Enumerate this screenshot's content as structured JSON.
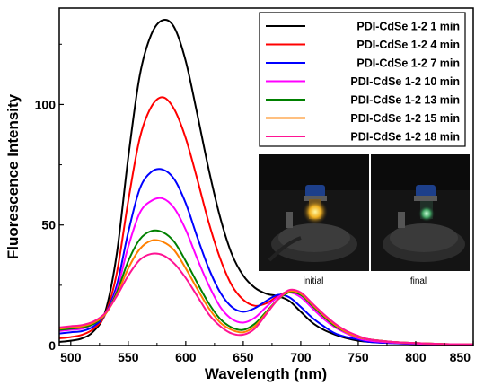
{
  "chart_data": {
    "type": "line",
    "title": "",
    "xlabel": "Wavelength (nm)",
    "ylabel": "Fluorescence Intensity",
    "xlim": [
      490,
      850
    ],
    "ylim": [
      0,
      140
    ],
    "x_ticks": [
      500,
      550,
      600,
      650,
      700,
      750,
      800,
      850
    ],
    "y_ticks": [
      0,
      50,
      100
    ],
    "legend_position": "top-right",
    "grid": false,
    "x": [
      490,
      500,
      510,
      520,
      530,
      540,
      550,
      560,
      570,
      580,
      590,
      600,
      610,
      620,
      630,
      640,
      650,
      660,
      670,
      680,
      690,
      700,
      710,
      720,
      730,
      740,
      750,
      760,
      780,
      800,
      825,
      850
    ],
    "series": [
      {
        "name": "PDI-CdSe 1-2 1 min",
        "color": "#000000",
        "values": [
          1.5,
          2,
          3,
          6,
          14,
          38,
          78,
          112,
          129,
          135,
          132,
          118,
          96,
          73,
          53,
          38,
          29,
          24,
          21.5,
          20.5,
          18.5,
          14,
          9.5,
          6.5,
          4.5,
          3,
          2,
          1.5,
          1,
          0.6,
          0.4,
          0.3
        ]
      },
      {
        "name": "PDI-CdSe 1-2 4 min",
        "color": "#ff0000",
        "values": [
          3,
          3.5,
          4.5,
          7,
          13,
          30,
          60,
          86,
          99,
          103,
          98,
          86,
          69,
          51,
          36,
          25,
          19,
          16.5,
          17.5,
          20.5,
          22.5,
          21,
          17,
          12,
          8,
          5.5,
          3.5,
          2.5,
          1.5,
          1,
          0.6,
          0.5
        ]
      },
      {
        "name": "PDI-CdSe 1-2 7 min",
        "color": "#0000ff",
        "values": [
          5,
          5.5,
          6,
          8,
          13,
          25,
          47,
          65,
          72,
          73,
          69,
          59,
          45,
          32,
          22,
          16,
          14,
          15.5,
          18.5,
          21,
          20,
          16,
          11.5,
          8,
          5,
          3.5,
          2.5,
          1.5,
          1,
          0.7,
          0.5,
          0.4
        ]
      },
      {
        "name": "PDI-CdSe 1-2 10 min",
        "color": "#ff00ff",
        "values": [
          6,
          6.5,
          7,
          9,
          13,
          23,
          41,
          55,
          60,
          61,
          57,
          48,
          36,
          25,
          16,
          11,
          9.5,
          11.5,
          16,
          20,
          22,
          20,
          15.5,
          11,
          7.5,
          5,
          3,
          2,
          1.2,
          0.8,
          0.5,
          0.4
        ]
      },
      {
        "name": "PDI-CdSe 1-2 13 min",
        "color": "#008000",
        "values": [
          6.5,
          7,
          7.5,
          9,
          13,
          22,
          35,
          44,
          47.5,
          47,
          43,
          35,
          26,
          17.5,
          11,
          7.5,
          6.5,
          9,
          14,
          19,
          22,
          21,
          16.5,
          12,
          8,
          5.5,
          3.5,
          2.5,
          1.5,
          1,
          0.6,
          0.5
        ]
      },
      {
        "name": "PDI-CdSe 1-2 15 min",
        "color": "#ff8000",
        "values": [
          7,
          7.5,
          8,
          9.5,
          13,
          21,
          32,
          40,
          43.5,
          43,
          39.5,
          32,
          23.5,
          15.5,
          9.5,
          6.5,
          5.5,
          8,
          13.5,
          19,
          22.5,
          21.5,
          17,
          12.5,
          8.5,
          5.5,
          3.5,
          2.5,
          1.5,
          1,
          0.6,
          0.5
        ]
      },
      {
        "name": "PDI-CdSe 1-2 18 min",
        "color": "#ff1493",
        "values": [
          7.5,
          8,
          8.5,
          10,
          13.5,
          20.5,
          29,
          35.5,
          38,
          37.5,
          34,
          28,
          20.5,
          13,
          8,
          5,
          4.5,
          7,
          13,
          19,
          23,
          22,
          17.5,
          13,
          9,
          6,
          4,
          2.5,
          1.5,
          1,
          0.6,
          0.5
        ]
      }
    ],
    "inset": {
      "captions": [
        "initial",
        "final"
      ]
    }
  }
}
